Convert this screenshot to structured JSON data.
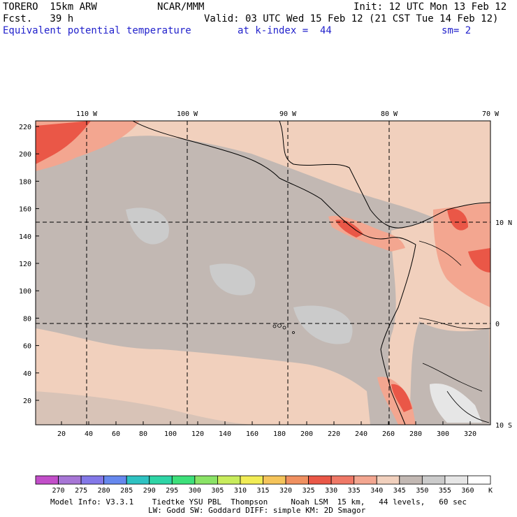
{
  "header": {
    "model": "TORERO  15km ARW",
    "org": "NCAR/MMM",
    "init": "Init: 12 UTC Mon 13 Feb 12",
    "fcst": "Fcst.   39 h",
    "valid": "Valid: 03 UTC Wed 15 Feb 12 (21 CST Tue 14 Feb 12)",
    "field": "Equivalent potential temperature",
    "level": "at k-index =  44",
    "smooth": "sm= 2"
  },
  "map": {
    "lon_labels": [
      "110 W",
      "100 W",
      "90 W",
      "80 W",
      "70 W"
    ],
    "lat_labels": [
      "10 N",
      "0",
      "10 S"
    ],
    "y_ticks": [
      "220",
      "200",
      "180",
      "160",
      "140",
      "120",
      "100",
      "80",
      "60",
      "40",
      "20"
    ],
    "x_ticks": [
      "20",
      "40",
      "60",
      "80",
      "100",
      "120",
      "140",
      "160",
      "180",
      "200",
      "220",
      "240",
      "260",
      "280",
      "300",
      "320"
    ],
    "fill_colors": {
      "ocean": "#c2b8b3",
      "ocean_cool": "#cbcbcb",
      "warm": "#f1d0bd",
      "warmer": "#f3a690",
      "warmest": "#ea5747",
      "cold": "#e6e6e6"
    }
  },
  "colorbar": {
    "labels": [
      "270",
      "275",
      "280",
      "285",
      "290",
      "295",
      "300",
      "305",
      "310",
      "315",
      "320",
      "325",
      "330",
      "335",
      "340",
      "345",
      "350",
      "355",
      "360"
    ],
    "unit": "K",
    "colors": [
      "#c24ec9",
      "#a776d6",
      "#8378e8",
      "#6688ee",
      "#2ec2c2",
      "#2ed5a6",
      "#3de07a",
      "#8ae366",
      "#c8ec5c",
      "#f1ec55",
      "#f5c45a",
      "#f09060",
      "#ea5747",
      "#ef7866",
      "#f3a690",
      "#f1d0bd",
      "#c2b8b3",
      "#cbcbcb",
      "#e6e6e6",
      "#ffffff"
    ]
  },
  "footer": {
    "line1": "Model Info: V3.3.1    Tiedtke YSU PBL  Thompson     Noah LSM  15 km,   44 levels,   60 sec",
    "line2": "LW: Godd SW: Goddard DIFF: simple KM: 2D Smagor"
  }
}
